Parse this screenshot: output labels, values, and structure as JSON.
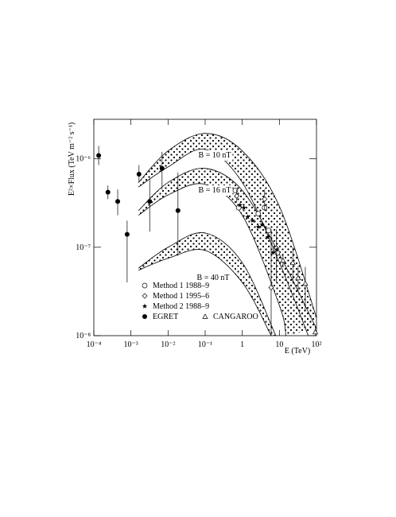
{
  "chart_data": {
    "type": "scatter",
    "x_label": "E (TeV)",
    "y_label": "E²×Flux (TeV m⁻² s⁻¹)",
    "log_x": true,
    "log_y": true,
    "xlim": [
      0.0001,
      100
    ],
    "ylim": [
      1e-08,
      2.8e-06
    ],
    "xticks": [
      {
        "value": 0.0001,
        "label": "10⁻⁴"
      },
      {
        "value": 0.001,
        "label": "10⁻³"
      },
      {
        "value": 0.01,
        "label": "10⁻²"
      },
      {
        "value": 0.1,
        "label": "10⁻¹"
      },
      1,
      10,
      {
        "value": 100,
        "label": "10²"
      }
    ],
    "yticks": [
      {
        "value": 1e-08,
        "label": "10⁻⁸"
      },
      {
        "value": 1e-07,
        "label": "10⁻⁷"
      },
      {
        "value": 1e-06,
        "label": "10⁻⁶"
      }
    ],
    "bands": [
      {
        "label": "B = 10 nT",
        "upper": {
          "x": [
            0.0016,
            0.01,
            0.1,
            1,
            10,
            100
          ],
          "values": [
            5.4e-07,
            1.23e-06,
            1.94e-06,
            1.23e-06,
            2.9e-07,
            1.6e-08
          ]
        },
        "lower": {
          "x": [
            0.0016,
            0.01,
            0.1,
            1,
            10,
            60
          ],
          "values": [
            4.8e-07,
            8.1e-07,
            1.28e-06,
            5.4e-07,
            6.7e-08,
            1e-08
          ]
        }
      },
      {
        "label": "B = 16 nT",
        "upper": {
          "x": [
            0.0016,
            0.01,
            0.1,
            1,
            10,
            100
          ],
          "values": [
            2.6e-07,
            5.4e-07,
            7.8e-07,
            4.4e-07,
            8.3e-08,
            1.2e-08
          ]
        },
        "lower": {
          "x": [
            0.0016,
            0.01,
            0.1,
            1,
            10,
            15
          ],
          "values": [
            2.3e-07,
            3.9e-07,
            5.15e-07,
            2.3e-07,
            2.2e-08,
            1e-08
          ]
        }
      },
      {
        "label": "B = 40 nT",
        "upper": {
          "x": [
            0.0016,
            0.01,
            0.1,
            1,
            8
          ],
          "values": [
            5.8e-08,
            1e-07,
            1.45e-07,
            6.7e-08,
            1e-08
          ]
        },
        "lower": {
          "x": [
            0.0016,
            0.01,
            0.1,
            1,
            6
          ],
          "values": [
            5.5e-08,
            7.5e-08,
            9.2e-08,
            4e-08,
            1e-08
          ]
        }
      }
    ],
    "series": [
      {
        "name": "Method 1 1988–9",
        "marker": "open-circle",
        "color": "#000000",
        "x": [
          0.65,
          0.8,
          2.7,
          4.0,
          5.1,
          8.9
        ],
        "values": [
          4.4e-07,
          2.8e-07,
          2.4e-07,
          2.8e-07,
          1.55e-07,
          8.7e-08
        ]
      },
      {
        "name": "Method 1 1995–6",
        "marker": "open-diamond",
        "color": "#000000",
        "x": [
          0.71,
          4.0,
          6.0,
          8.3
        ],
        "values": [
          3.8e-07,
          3.5e-07,
          3.5e-08,
          9.8e-08
        ],
        "low": [
          3.2e-07,
          2.6e-07,
          1e-08,
          4e-08
        ],
        "high": [
          4.5e-07,
          4.5e-07,
          1.6e-07,
          1.6e-07
        ]
      },
      {
        "name": "Method 2 1988–9",
        "marker": "star",
        "color": "#000000",
        "x": [
          0.87,
          1.1,
          1.4,
          1.9,
          2.7,
          3.4,
          4.9,
          6.7,
          8.6
        ],
        "values": [
          3e-07,
          2.8e-07,
          2.2e-07,
          2e-07,
          1.7e-07,
          1.8e-07,
          1.3e-07,
          8.7e-08,
          9.4e-08
        ]
      },
      {
        "name": "EGRET",
        "marker": "filled-circle",
        "color": "#000000",
        "x": [
          0.000135,
          0.00024,
          0.00044,
          0.00079,
          0.00165,
          0.0032,
          0.0069,
          0.0185
        ],
        "values": [
          1.09e-06,
          4.2e-07,
          3.3e-07,
          1.4e-07,
          6.7e-07,
          3.3e-07,
          7.8e-07,
          2.6e-07
        ],
        "low": [
          8.5e-07,
          3.5e-07,
          2.3e-07,
          4e-08,
          5.5e-07,
          1.5e-07,
          4.5e-07,
          8e-08
        ],
        "high": [
          1.4e-06,
          5e-07,
          4.5e-07,
          2e-07,
          8.5e-07,
          6e-07,
          1.2e-06,
          7e-07
        ]
      },
      {
        "name": "CANGAROO",
        "marker": "open-triangle",
        "color": "#000000",
        "x": [
          12.5,
          23,
          32,
          50,
          93
        ],
        "values": [
          7.1e-08,
          6.7e-08,
          4.5e-08,
          3.9e-08,
          1.1e-08
        ],
        "low": [
          6e-08,
          3.9e-08,
          3.2e-08,
          1.9e-08,
          1e-08
        ],
        "high": [
          8.5e-08,
          1e-07,
          6e-08,
          6e-08,
          1.3e-08
        ]
      }
    ]
  }
}
